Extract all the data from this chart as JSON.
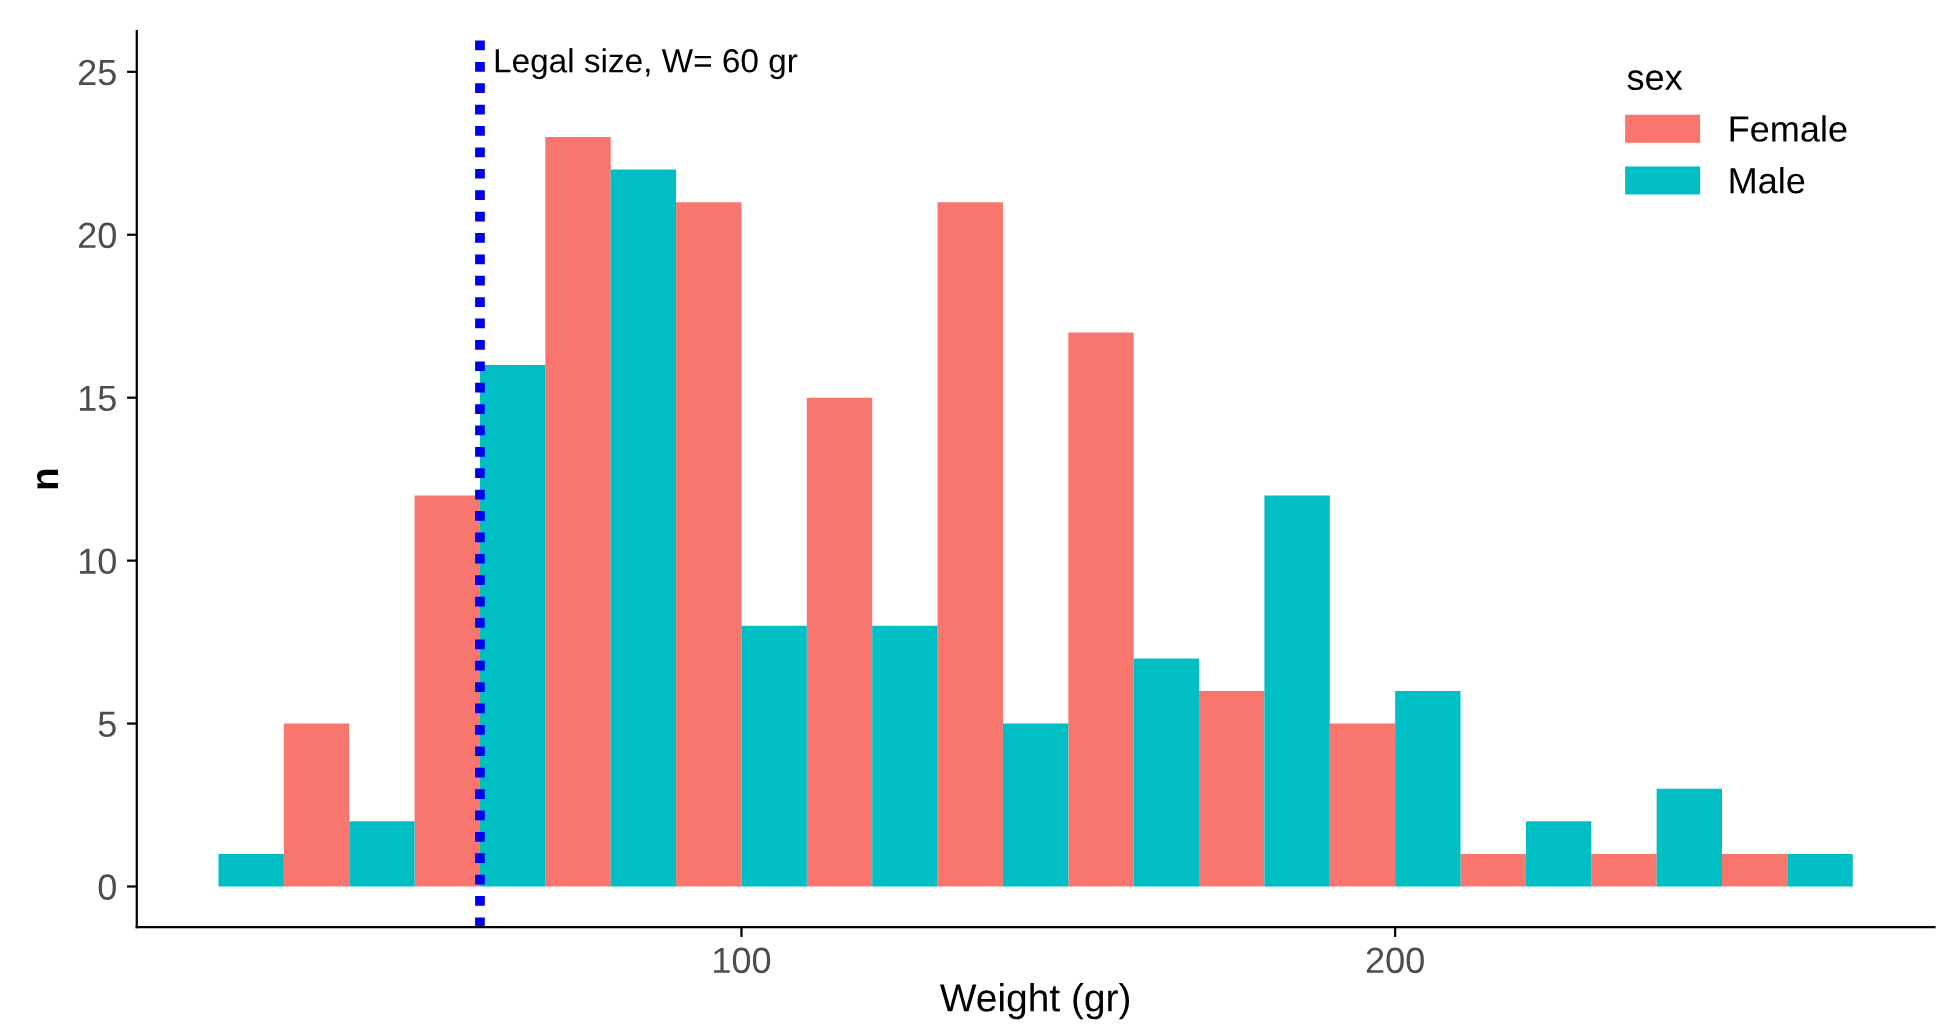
{
  "chart_data": {
    "type": "bar",
    "xlabel": "Weight (gr)",
    "ylabel": "n",
    "legend_title": "sex",
    "series": [
      {
        "name": "Female",
        "color": "#f8766d",
        "x": [
          35,
          55,
          75,
          95,
          115,
          135,
          155,
          175,
          195,
          215,
          235,
          255
        ],
        "values": [
          5,
          12,
          23,
          21,
          15,
          21,
          17,
          6,
          5,
          1,
          1,
          1
        ]
      },
      {
        "name": "Male",
        "color": "#00bfc4",
        "x": [
          25,
          45,
          65,
          85,
          105,
          125,
          145,
          165,
          185,
          205,
          225,
          245,
          265
        ],
        "values": [
          1,
          2,
          16,
          22,
          8,
          8,
          5,
          7,
          12,
          6,
          2,
          3,
          1
        ]
      }
    ],
    "xlim": [
      7.5,
      282.5
    ],
    "xticks": [
      100,
      200
    ],
    "ylim": [
      -1.25,
      26.25
    ],
    "yticks": [
      0,
      5,
      10,
      15,
      20,
      25
    ],
    "ref_lines": [
      {
        "axis": "x",
        "value": 60,
        "label": "Legal size, W= 60 gr",
        "color": "#0000ee",
        "line_style": "dotted"
      }
    ],
    "grid": false,
    "legend": "top right"
  }
}
